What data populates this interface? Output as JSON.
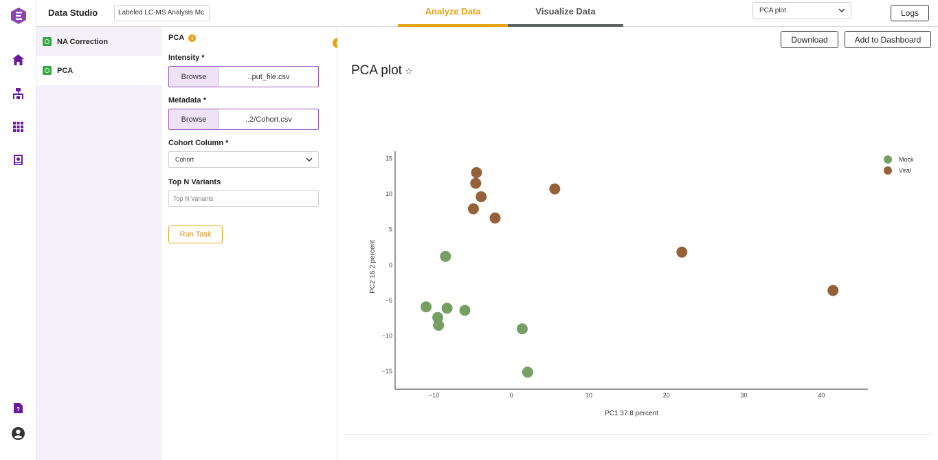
{
  "header": {
    "app_title": "Data Studio",
    "project_name": "Labeled LC-MS Analysis Mc",
    "tabs": [
      {
        "label": "Analyze Data",
        "active": true
      },
      {
        "label": "Visualize Data",
        "active": false
      }
    ],
    "plot_selector": "PCA plot",
    "logs_label": "Logs"
  },
  "rail": {
    "icons": [
      "logo-icon",
      "home-icon",
      "workflow-icon",
      "apps-grid-icon",
      "dataset-icon",
      "help-doc-icon",
      "account-icon"
    ]
  },
  "tasks": [
    {
      "label": "NA Correction",
      "status": "complete"
    },
    {
      "label": "PCA",
      "status": "complete"
    }
  ],
  "form": {
    "title": "PCA",
    "intensity": {
      "label": "Intensity *",
      "browse": "Browse",
      "file": "..put_file.csv"
    },
    "metadata": {
      "label": "Metadata *",
      "browse": "Browse",
      "file": "..2/Cohort.csv"
    },
    "cohort_column": {
      "label": "Cohort Column *",
      "value": "Cohort"
    },
    "top_n": {
      "label": "Top N Variants",
      "placeholder": "Top N Variants"
    },
    "run_label": "Run Task"
  },
  "main": {
    "download_label": "Download",
    "dashboard_label": "Add to Dashboard",
    "plot_title": "PCA plot"
  },
  "colors": {
    "accent": "#e8a317",
    "mock": "#76a063",
    "viral": "#93613a",
    "brand": "#6a1b9a"
  },
  "chart_data": {
    "type": "scatter",
    "xlabel": "PC1 37.8 percent",
    "ylabel": "PC2 16.2 percent",
    "xlim": [
      -15,
      46
    ],
    "ylim": [
      -17.5,
      16
    ],
    "xticks": [
      -10,
      0,
      10,
      20,
      30,
      40
    ],
    "yticks": [
      -15,
      -10,
      -5,
      0,
      5,
      10,
      15
    ],
    "xtick_labels": [
      "−10",
      "0",
      "10",
      "20",
      "30",
      "40"
    ],
    "ytick_labels": [
      "−15",
      "−10",
      "−5",
      "0",
      "5",
      "10",
      "15"
    ],
    "legend_position": "top-right",
    "series": [
      {
        "name": "Mock",
        "color": "#76a063",
        "points": [
          [
            -8.5,
            1.2
          ],
          [
            -11,
            -5.9
          ],
          [
            -9.5,
            -7.4
          ],
          [
            -9.4,
            -8.5
          ],
          [
            -8.3,
            -6.1
          ],
          [
            -6,
            -6.4
          ],
          [
            1.4,
            -9
          ],
          [
            2.1,
            -15.1
          ]
        ]
      },
      {
        "name": "Viral",
        "color": "#93613a",
        "points": [
          [
            -4.5,
            13
          ],
          [
            -4.6,
            11.5
          ],
          [
            -3.9,
            9.6
          ],
          [
            -4.9,
            7.9
          ],
          [
            -2.1,
            6.6
          ],
          [
            5.6,
            10.7
          ],
          [
            22,
            1.8
          ],
          [
            41.5,
            -3.6
          ]
        ]
      }
    ]
  }
}
